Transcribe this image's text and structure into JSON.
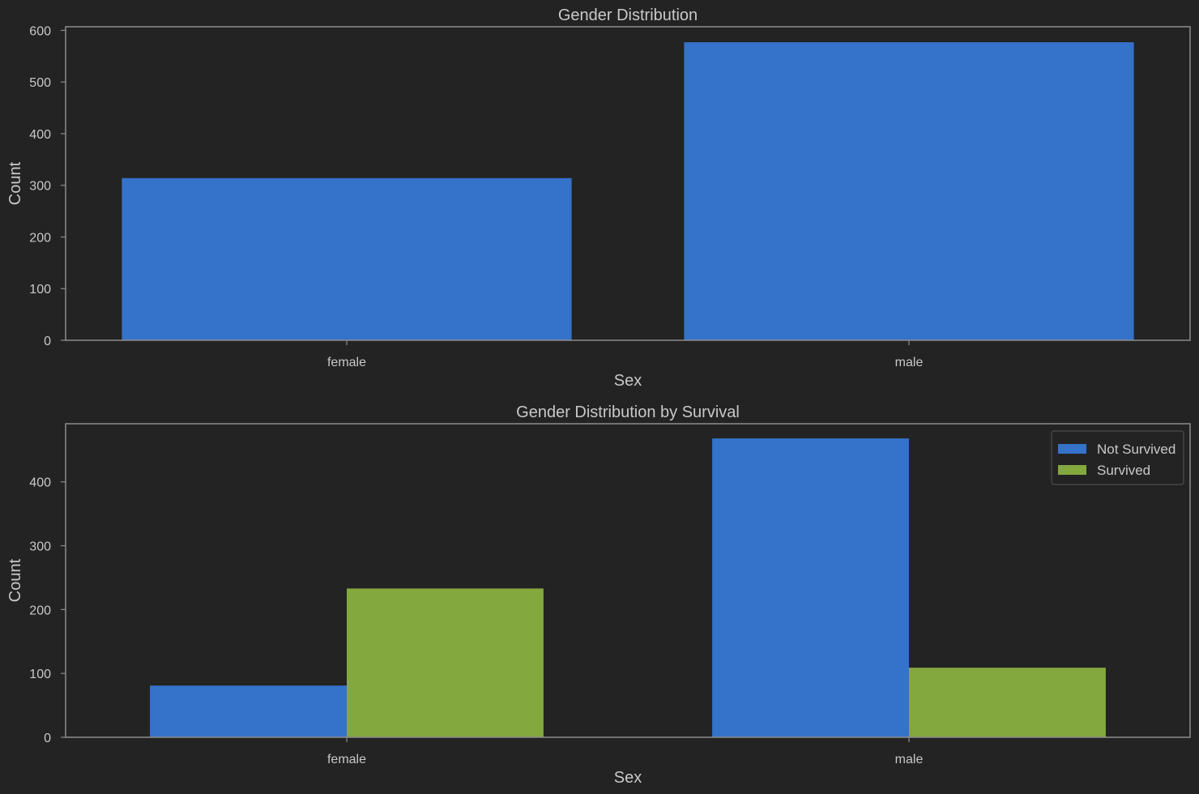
{
  "chart_data": [
    {
      "type": "bar",
      "title": "Gender Distribution",
      "xlabel": "Sex",
      "ylabel": "Count",
      "categories": [
        "female",
        "male"
      ],
      "series": [
        {
          "values": [
            314,
            577
          ],
          "color": "#3572c9"
        }
      ],
      "ylim": [
        0,
        607
      ],
      "yticks": [
        0,
        100,
        200,
        300,
        400,
        500,
        600
      ],
      "grid": false
    },
    {
      "type": "bar",
      "title": "Gender Distribution by Survival",
      "xlabel": "Sex",
      "ylabel": "Count",
      "categories": [
        "female",
        "male"
      ],
      "series": [
        {
          "name": "Not Survived",
          "values": [
            81,
            468
          ],
          "color": "#3572c9"
        },
        {
          "name": "Survived",
          "values": [
            233,
            109
          ],
          "color": "#83a83e"
        }
      ],
      "ylim": [
        0,
        491
      ],
      "yticks": [
        0,
        100,
        200,
        300,
        400
      ],
      "grid": false,
      "legend": "top-right"
    }
  ],
  "theme": {
    "background": "#232323",
    "frame": "#8c8c8c",
    "text": "#c8c8c8"
  }
}
